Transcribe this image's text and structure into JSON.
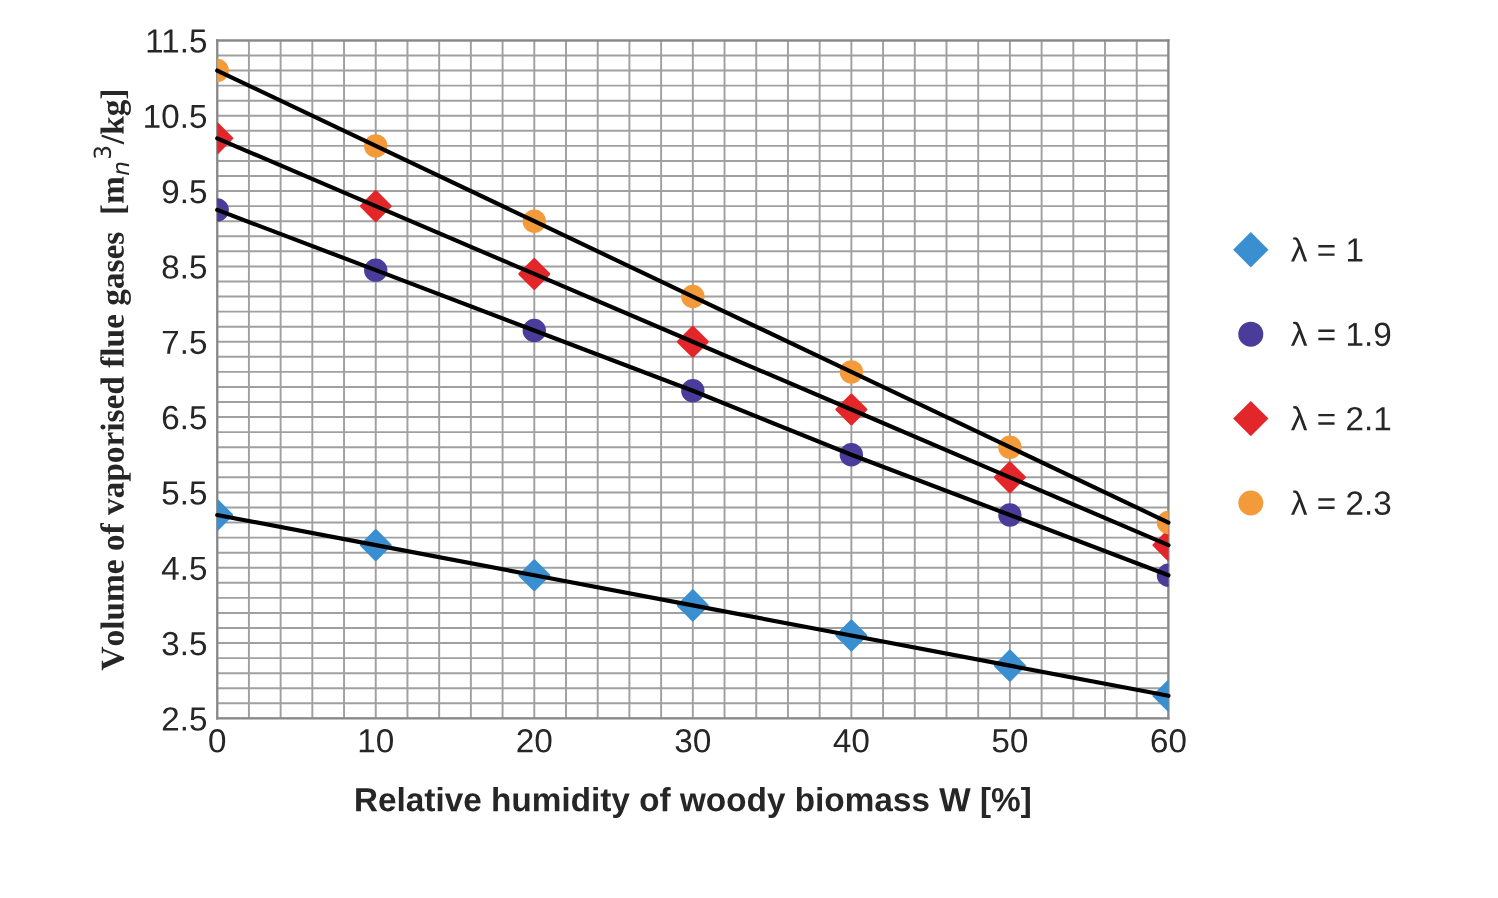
{
  "chart_data": {
    "type": "scatter",
    "xlabel": "Relative humidity of woody biomass W [%]",
    "ylabel": "Volume of vaporised flue gases  [m$_{n}$$^{3}$/kg]",
    "x": [
      0,
      10,
      20,
      30,
      40,
      50,
      60
    ],
    "series": [
      {
        "name": "λ = 1",
        "color": "#3a8fd0",
        "marker": "diamond",
        "values": [
          5.2,
          4.8,
          4.4,
          4.0,
          3.6,
          3.2,
          2.8
        ]
      },
      {
        "name": "λ = 1.9",
        "color": "#4a3c9a",
        "marker": "circle",
        "values": [
          9.25,
          8.45,
          7.65,
          6.85,
          6.0,
          5.2,
          4.4
        ]
      },
      {
        "name": "λ = 2.1",
        "color": "#e3262a",
        "marker": "diamond",
        "values": [
          10.2,
          9.3,
          8.4,
          7.5,
          6.6,
          5.7,
          4.8
        ]
      },
      {
        "name": "λ = 2.3",
        "color": "#f39a3a",
        "marker": "circle",
        "values": [
          11.1,
          10.1,
          9.1,
          8.1,
          7.1,
          6.1,
          5.1
        ]
      },
      {
        "type": "line",
        "color": "#000000",
        "marker": "none",
        "values": [
          5.2,
          4.8,
          4.4,
          4.0,
          3.6,
          3.2,
          2.8
        ]
      },
      {
        "type": "line",
        "color": "#000000",
        "marker": "none",
        "values": [
          9.25,
          8.45,
          7.65,
          6.85,
          6.0,
          5.2,
          4.4
        ]
      },
      {
        "type": "line",
        "color": "#000000",
        "marker": "none",
        "values": [
          10.2,
          9.3,
          8.4,
          7.5,
          6.6,
          5.7,
          4.8
        ]
      },
      {
        "type": "line",
        "color": "#000000",
        "marker": "none",
        "values": [
          11.1,
          10.1,
          9.1,
          8.1,
          7.1,
          6.1,
          5.1
        ]
      }
    ],
    "xlim": [
      0,
      60
    ],
    "ylim": [
      2.5,
      11.5
    ],
    "xticks": [
      0,
      {
        "value": 2,
        "label": null
      },
      {
        "value": 4,
        "label": null
      },
      {
        "value": 6,
        "label": null
      },
      {
        "value": 8,
        "label": null
      },
      10,
      {
        "value": 12,
        "label": null
      },
      {
        "value": 14,
        "label": null
      },
      {
        "value": 16,
        "label": null
      },
      {
        "value": 18,
        "label": null
      },
      20,
      {
        "value": 22,
        "label": null
      },
      {
        "value": 24,
        "label": null
      },
      {
        "value": 26,
        "label": null
      },
      {
        "value": 28,
        "label": null
      },
      30,
      {
        "value": 32,
        "label": null
      },
      {
        "value": 34,
        "label": null
      },
      {
        "value": 36,
        "label": null
      },
      {
        "value": 38,
        "label": null
      },
      40,
      {
        "value": 42,
        "label": null
      },
      {
        "value": 44,
        "label": null
      },
      {
        "value": 46,
        "label": null
      },
      {
        "value": 48,
        "label": null
      },
      50,
      {
        "value": 52,
        "label": null
      },
      {
        "value": 54,
        "label": null
      },
      {
        "value": 56,
        "label": null
      },
      {
        "value": 58,
        "label": null
      },
      60
    ],
    "yticks": [
      2.5,
      {
        "value": 2.7,
        "label": null
      },
      {
        "value": 2.9,
        "label": null
      },
      {
        "value": 3.1,
        "label": null
      },
      {
        "value": 3.3,
        "label": null
      },
      3.5,
      {
        "value": 3.7,
        "label": null
      },
      {
        "value": 3.9,
        "label": null
      },
      {
        "value": 4.1,
        "label": null
      },
      {
        "value": 4.3,
        "label": null
      },
      4.5,
      {
        "value": 4.7,
        "label": null
      },
      {
        "value": 4.9,
        "label": null
      },
      {
        "value": 5.1,
        "label": null
      },
      {
        "value": 5.3,
        "label": null
      },
      5.5,
      {
        "value": 5.7,
        "label": null
      },
      {
        "value": 5.9,
        "label": null
      },
      {
        "value": 6.1,
        "label": null
      },
      {
        "value": 6.3,
        "label": null
      },
      6.5,
      {
        "value": 6.7,
        "label": null
      },
      {
        "value": 6.9,
        "label": null
      },
      {
        "value": 7.1,
        "label": null
      },
      {
        "value": 7.3,
        "label": null
      },
      7.5,
      {
        "value": 7.7,
        "label": null
      },
      {
        "value": 7.9,
        "label": null
      },
      {
        "value": 8.1,
        "label": null
      },
      {
        "value": 8.3,
        "label": null
      },
      8.5,
      {
        "value": 8.7,
        "label": null
      },
      {
        "value": 8.9,
        "label": null
      },
      {
        "value": 9.1,
        "label": null
      },
      {
        "value": 9.3,
        "label": null
      },
      9.5,
      {
        "value": 9.7,
        "label": null
      },
      {
        "value": 9.9,
        "label": null
      },
      {
        "value": 10.1,
        "label": null
      },
      {
        "value": 10.3,
        "label": null
      },
      10.5,
      {
        "value": 10.7,
        "label": null
      },
      {
        "value": 10.9,
        "label": null
      },
      {
        "value": 11.1,
        "label": null
      },
      {
        "value": 11.3,
        "label": null
      },
      11.5
    ],
    "grid": true,
    "legend": "right"
  }
}
